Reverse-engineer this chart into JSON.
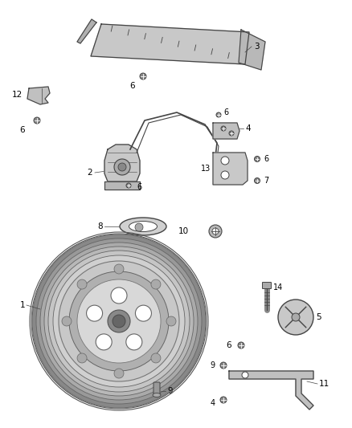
{
  "bg_color": "#ffffff",
  "line_color": "#444444",
  "label_color": "#000000",
  "fig_w": 4.38,
  "fig_h": 5.33,
  "dpi": 100
}
